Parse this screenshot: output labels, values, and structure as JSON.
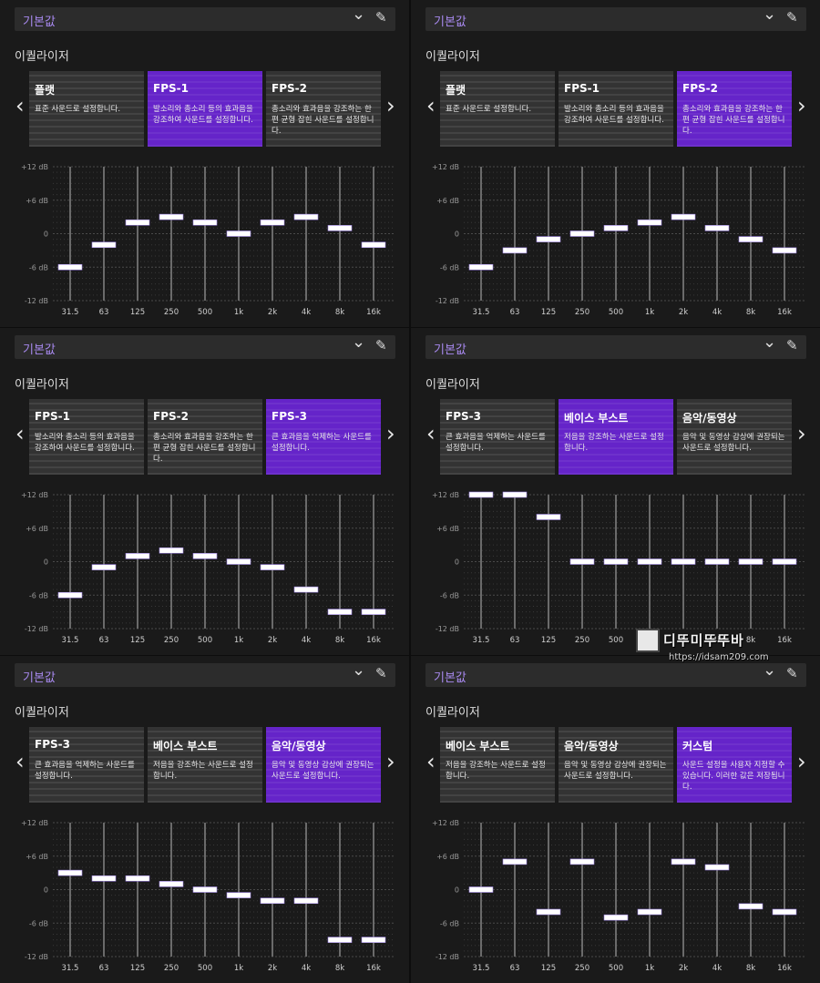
{
  "panels": [
    {
      "preset": "기본값",
      "section": "이퀄라이저",
      "cards": [
        {
          "name": "플랫",
          "desc": "표준 사운드로 설정합니다.",
          "selected": false
        },
        {
          "name": "FPS-1",
          "desc": "발소리와 총소리 등의 효과음을 강조하여 사운드를 설정합니다.",
          "selected": true
        },
        {
          "name": "FPS-2",
          "desc": "총소리와 효과음을 강조하는 한편 균형 잡힌 사운드를 설정합니다.",
          "selected": false
        }
      ],
      "chart_data": {
        "type": "bar",
        "categories": [
          "31.5",
          "63",
          "125",
          "250",
          "500",
          "1k",
          "2k",
          "4k",
          "8k",
          "16k"
        ],
        "values": [
          -6,
          -2,
          2,
          3,
          2,
          0,
          2,
          3,
          1,
          -2
        ],
        "ylim": [
          -12,
          12
        ],
        "yticks": [
          "+12 dB",
          "+6 dB",
          "0",
          "-6 dB",
          "-12 dB"
        ]
      }
    },
    {
      "preset": "기본값",
      "section": "이퀄라이저",
      "cards": [
        {
          "name": "플랫",
          "desc": "표준 사운드로 설정합니다.",
          "selected": false
        },
        {
          "name": "FPS-1",
          "desc": "발소리와 총소리 등의 효과음을 강조하여 사운드를 설정합니다.",
          "selected": false
        },
        {
          "name": "FPS-2",
          "desc": "총소리와 효과음을 강조하는 한편 균형 잡힌 사운드를 설정합니다.",
          "selected": true
        }
      ],
      "chart_data": {
        "type": "bar",
        "categories": [
          "31.5",
          "63",
          "125",
          "250",
          "500",
          "1k",
          "2k",
          "4k",
          "8k",
          "16k"
        ],
        "values": [
          -6,
          -3,
          -1,
          0,
          1,
          2,
          3,
          1,
          -1,
          -3
        ],
        "ylim": [
          -12,
          12
        ],
        "yticks": [
          "+12 dB",
          "+6 dB",
          "0",
          "-6 dB",
          "-12 dB"
        ]
      }
    },
    {
      "preset": "기본값",
      "section": "이퀄라이저",
      "cards": [
        {
          "name": "FPS-1",
          "desc": "발소리와 총소리 등의 효과음을 강조하여 사운드를 설정합니다.",
          "selected": false
        },
        {
          "name": "FPS-2",
          "desc": "총소리와 효과음을 강조하는 한편 균형 잡힌 사운드를 설정합니다.",
          "selected": false
        },
        {
          "name": "FPS-3",
          "desc": "큰 효과음을 억제하는 사운드를 설정합니다.",
          "selected": true
        }
      ],
      "chart_data": {
        "type": "bar",
        "categories": [
          "31.5",
          "63",
          "125",
          "250",
          "500",
          "1k",
          "2k",
          "4k",
          "8k",
          "16k"
        ],
        "values": [
          -6,
          -1,
          1,
          2,
          1,
          0,
          -1,
          -5,
          -9,
          -9
        ],
        "ylim": [
          -12,
          12
        ],
        "yticks": [
          "+12 dB",
          "+6 dB",
          "0",
          "-6 dB",
          "-12 dB"
        ]
      }
    },
    {
      "preset": "기본값",
      "section": "이퀄라이저",
      "cards": [
        {
          "name": "FPS-3",
          "desc": "큰 효과음을 억제하는 사운드를 설정합니다.",
          "selected": false
        },
        {
          "name": "베이스 부스트",
          "desc": "저음을 강조하는 사운드로 설정합니다.",
          "selected": true
        },
        {
          "name": "음악/동영상",
          "desc": "음악 및 동영상 감상에 권장되는 사운드로 설정합니다.",
          "selected": false
        }
      ],
      "chart_data": {
        "type": "bar",
        "categories": [
          "31.5",
          "63",
          "125",
          "250",
          "500",
          "1k",
          "2k",
          "4k",
          "8k",
          "16k"
        ],
        "values": [
          12,
          12,
          8,
          0,
          0,
          0,
          0,
          0,
          0,
          0
        ],
        "ylim": [
          -12,
          12
        ],
        "yticks": [
          "+12 dB",
          "+6 dB",
          "0",
          "-6 dB",
          "-12 dB"
        ]
      }
    },
    {
      "preset": "기본값",
      "section": "이퀄라이저",
      "cards": [
        {
          "name": "FPS-3",
          "desc": "큰 효과음을 억제하는 사운드를 설정합니다.",
          "selected": false
        },
        {
          "name": "베이스 부스트",
          "desc": "저음을 강조하는 사운드로 설정합니다.",
          "selected": false
        },
        {
          "name": "음악/동영상",
          "desc": "음악 및 동영상 감상에 권장되는 사운드로 설정합니다.",
          "selected": true
        }
      ],
      "chart_data": {
        "type": "bar",
        "categories": [
          "31.5",
          "63",
          "125",
          "250",
          "500",
          "1k",
          "2k",
          "4k",
          "8k",
          "16k"
        ],
        "values": [
          3,
          2,
          2,
          1,
          0,
          -1,
          -2,
          -2,
          -9,
          -9
        ],
        "ylim": [
          -12,
          12
        ],
        "yticks": [
          "+12 dB",
          "+6 dB",
          "0",
          "-6 dB",
          "-12 dB"
        ]
      }
    },
    {
      "preset": "기본값",
      "section": "이퀄라이저",
      "cards": [
        {
          "name": "베이스 부스트",
          "desc": "저음을 강조하는 사운드로 설정합니다.",
          "selected": false
        },
        {
          "name": "음악/동영상",
          "desc": "음악 및 동영상 감상에 권장되는 사운드로 설정합니다.",
          "selected": false
        },
        {
          "name": "커스텀",
          "desc": "사운드 설정을 사용자 지정할 수 있습니다. 이러한 값은 저장됩니다.",
          "selected": true
        }
      ],
      "chart_data": {
        "type": "bar",
        "categories": [
          "31.5",
          "63",
          "125",
          "250",
          "500",
          "1k",
          "2k",
          "4k",
          "8k",
          "16k"
        ],
        "values": [
          0,
          5,
          -4,
          5,
          -5,
          -4,
          5,
          4,
          -3,
          -4
        ],
        "ylim": [
          -12,
          12
        ],
        "yticks": [
          "+12 dB",
          "+6 dB",
          "0",
          "-6 dB",
          "-12 dB"
        ]
      }
    }
  ],
  "icons": {
    "chevron_down": "chevron-down-icon",
    "edit": "pencil-icon",
    "prev": "chevron-left-icon",
    "next": "chevron-right-icon"
  },
  "colors": {
    "accent": "#6524c9",
    "preset_text": "#a98af0",
    "card": "#333333",
    "panel": "#1a1a1a",
    "bar": "#ffffff"
  },
  "watermark": {
    "brand": "디뚜미뚜뚜바",
    "url": "https://idsam209.com"
  }
}
